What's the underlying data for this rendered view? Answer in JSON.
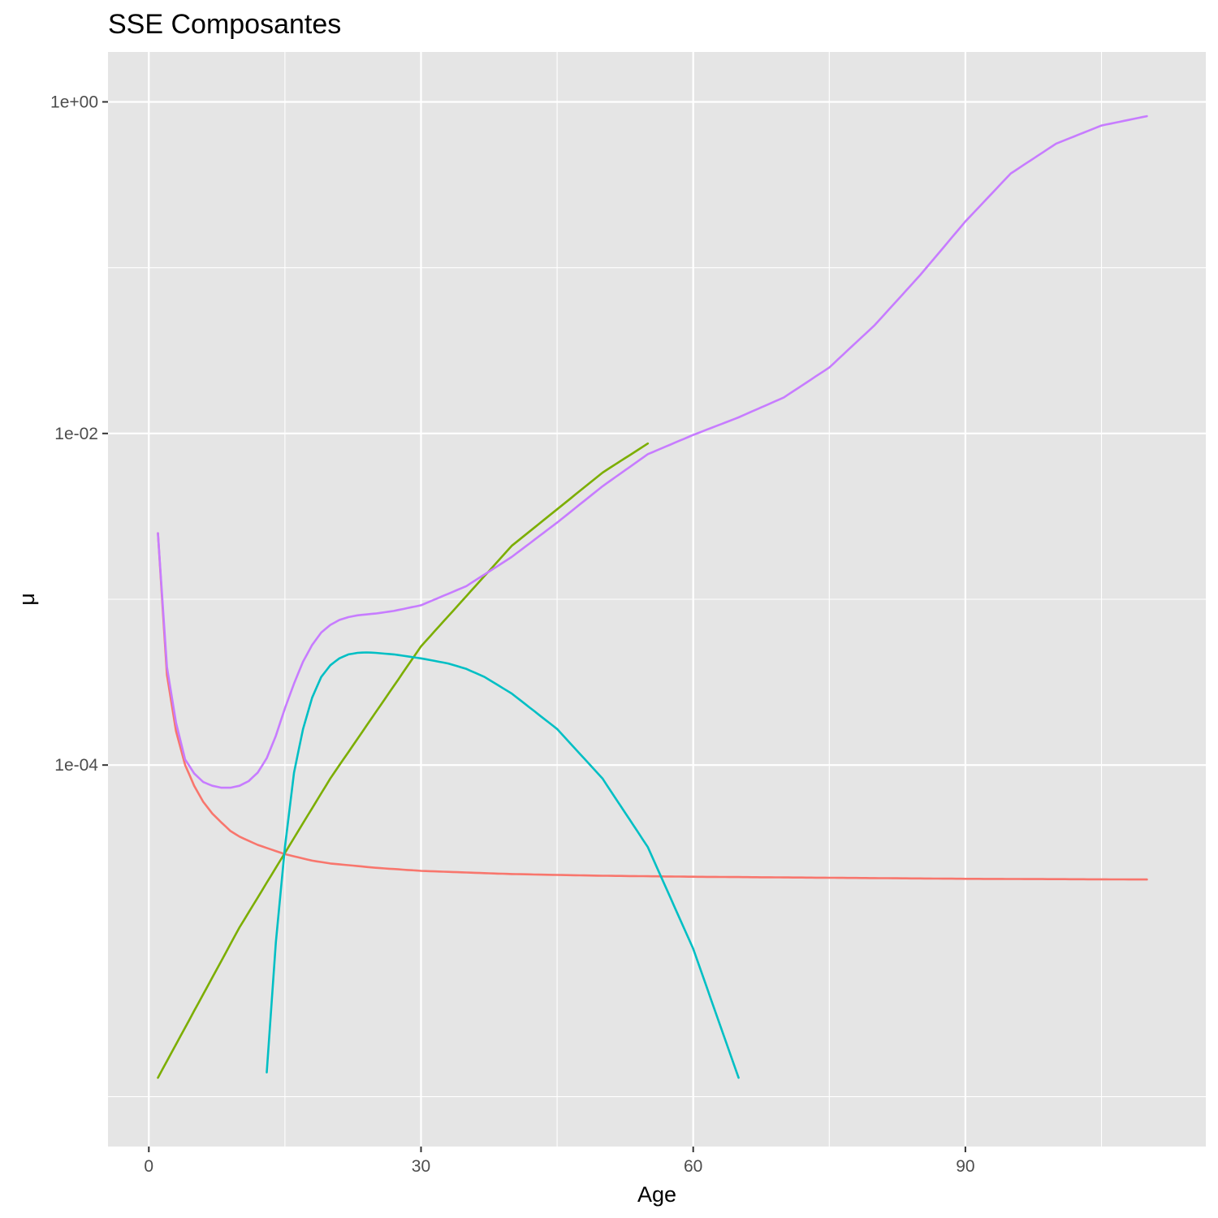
{
  "chart_data": {
    "type": "line",
    "title": "SSE Composantes",
    "xlabel": "Age",
    "ylabel": "μ",
    "xlim": [
      -4.5,
      116.5
    ],
    "ylim": [
      5e-07,
      2.0
    ],
    "y_scale": "log10",
    "grid": true,
    "legend": "none",
    "x_ticks": [
      0,
      30,
      60,
      90
    ],
    "x_tick_labels": [
      "0",
      "30",
      "60",
      "90"
    ],
    "y_ticks": [
      0.0001,
      0.01,
      1
    ],
    "y_tick_labels": [
      "1e-04",
      "1e-02",
      "1e+00"
    ],
    "series": [
      {
        "color": "#F8766D",
        "x": [
          1,
          2,
          3,
          4,
          5,
          6,
          7,
          8,
          9,
          10,
          12,
          15,
          18,
          20,
          25,
          30,
          40,
          50,
          60,
          70,
          80,
          90,
          100,
          110
        ],
        "y": [
          0.0025,
          0.00035,
          0.00016,
          0.0001,
          7.5e-05,
          6e-05,
          5.1e-05,
          4.5e-05,
          4e-05,
          3.7e-05,
          3.3e-05,
          2.9e-05,
          2.65e-05,
          2.55e-05,
          2.4e-05,
          2.3e-05,
          2.2e-05,
          2.15e-05,
          2.12e-05,
          2.1e-05,
          2.08e-05,
          2.06e-05,
          2.05e-05,
          2.04e-05
        ]
      },
      {
        "color": "#7CAE00",
        "x": [
          1,
          10,
          20,
          30,
          40,
          50,
          55
        ],
        "y": [
          1.3e-06,
          1.05e-05,
          8.3e-05,
          0.00052,
          0.0021,
          0.0058,
          0.0087
        ]
      },
      {
        "color": "#00BFC4",
        "x": [
          13,
          14,
          15,
          16,
          17,
          18,
          19,
          20,
          21,
          22,
          23,
          24,
          25,
          27,
          30,
          33,
          35,
          37,
          40,
          45,
          50,
          55,
          60,
          65
        ],
        "y": [
          1.4e-06,
          8.5e-06,
          3.2e-05,
          9e-05,
          0.000165,
          0.000255,
          0.00034,
          0.0004,
          0.00044,
          0.000465,
          0.000475,
          0.000478,
          0.000475,
          0.000465,
          0.00044,
          0.00041,
          0.00038,
          0.00034,
          0.00027,
          0.000165,
          8.3e-05,
          3.2e-05,
          7.8e-06,
          1.3e-06
        ]
      },
      {
        "color": "#C77CFF",
        "x": [
          1,
          2,
          3,
          4,
          5,
          6,
          7,
          8,
          9,
          10,
          11,
          12,
          13,
          14,
          15,
          16,
          17,
          18,
          19,
          20,
          21,
          22,
          23,
          24,
          25,
          27,
          30,
          35,
          40,
          45,
          50,
          55,
          60,
          65,
          70,
          75,
          80,
          85,
          90,
          95,
          100,
          105,
          110
        ],
        "y": [
          0.0025,
          0.00039,
          0.00018,
          0.000108,
          8.9e-05,
          7.9e-05,
          7.5e-05,
          7.3e-05,
          7.3e-05,
          7.5e-05,
          8e-05,
          9e-05,
          0.00011,
          0.00015,
          0.00022,
          0.00031,
          0.00042,
          0.00053,
          0.00063,
          0.0007,
          0.00075,
          0.00078,
          0.0008,
          0.00081,
          0.00082,
          0.00085,
          0.00092,
          0.0012,
          0.0018,
          0.0029,
          0.0048,
          0.0075,
          0.0098,
          0.0125,
          0.0165,
          0.025,
          0.045,
          0.09,
          0.19,
          0.37,
          0.56,
          0.72,
          0.82
        ]
      }
    ]
  }
}
